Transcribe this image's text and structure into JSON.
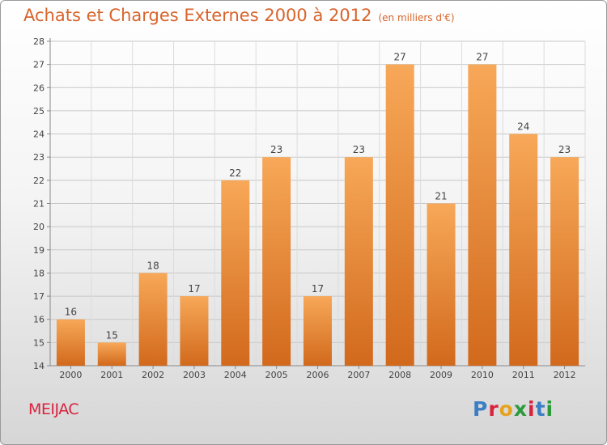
{
  "header": {
    "title": "Achats et Charges Externes 2000 à 2012",
    "unit": "(en milliers d'€)"
  },
  "commune": "MEIJAC",
  "logo": {
    "text": "Proxiti",
    "colors": [
      "#3a7ec4",
      "#d8233f",
      "#e6a21c",
      "#2a9a3a",
      "#d8233f",
      "#3a7ec4",
      "#2a9a3a"
    ]
  },
  "colors": {
    "bar_light": "#f7a858",
    "bar_dark": "#d2691c",
    "title": "#d8642c",
    "commune": "#d8233f"
  },
  "chart_data": {
    "type": "bar",
    "categories": [
      "2000",
      "2001",
      "2002",
      "2003",
      "2004",
      "2005",
      "2006",
      "2007",
      "2008",
      "2009",
      "2010",
      "2011",
      "2012"
    ],
    "values": [
      16,
      15,
      18,
      17,
      22,
      23,
      17,
      23,
      27,
      21,
      27,
      24,
      23
    ],
    "ylim": [
      14,
      28
    ],
    "yticks": [
      14,
      15,
      16,
      17,
      18,
      19,
      20,
      21,
      22,
      23,
      24,
      25,
      26,
      27,
      28
    ],
    "grid": true,
    "data_labels": true
  }
}
